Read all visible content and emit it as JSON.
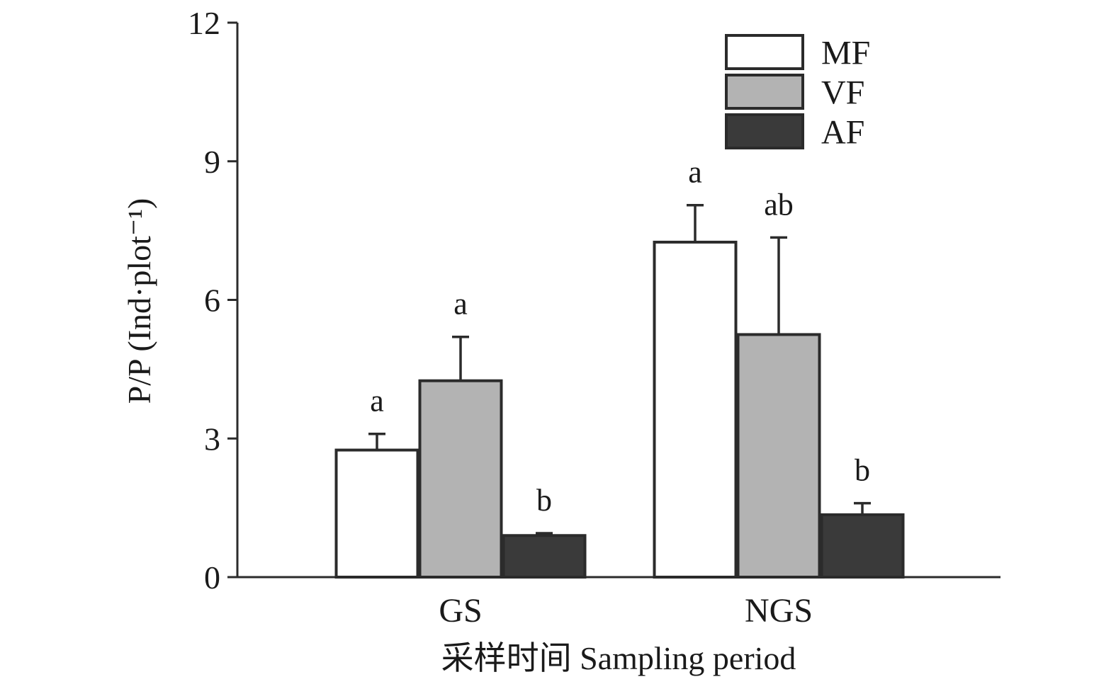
{
  "chart_data": {
    "type": "bar",
    "title": "",
    "xlabel": "采样时间 Sampling period",
    "ylabel": "P/P (Ind·plot⁻¹)",
    "ylim": [
      0,
      12
    ],
    "yticks": [
      "0",
      "3",
      "6",
      "9",
      "12"
    ],
    "categories": [
      "GS",
      "NGS"
    ],
    "series": [
      {
        "name": "MF",
        "color": "#ffffff",
        "values": [
          2.75,
          7.25
        ],
        "errors": [
          0.35,
          0.8
        ],
        "sig": [
          "a",
          "a"
        ]
      },
      {
        "name": "VF",
        "color": "#b3b3b3",
        "values": [
          4.25,
          5.25
        ],
        "errors": [
          0.95,
          2.1
        ],
        "sig": [
          "a",
          "ab"
        ]
      },
      {
        "name": "AF",
        "color": "#3a3a3a",
        "values": [
          0.9,
          1.35
        ],
        "errors": [
          0.05,
          0.25
        ],
        "sig": [
          "b",
          "b"
        ]
      }
    ],
    "grid": false,
    "legend_position": "top-right"
  }
}
